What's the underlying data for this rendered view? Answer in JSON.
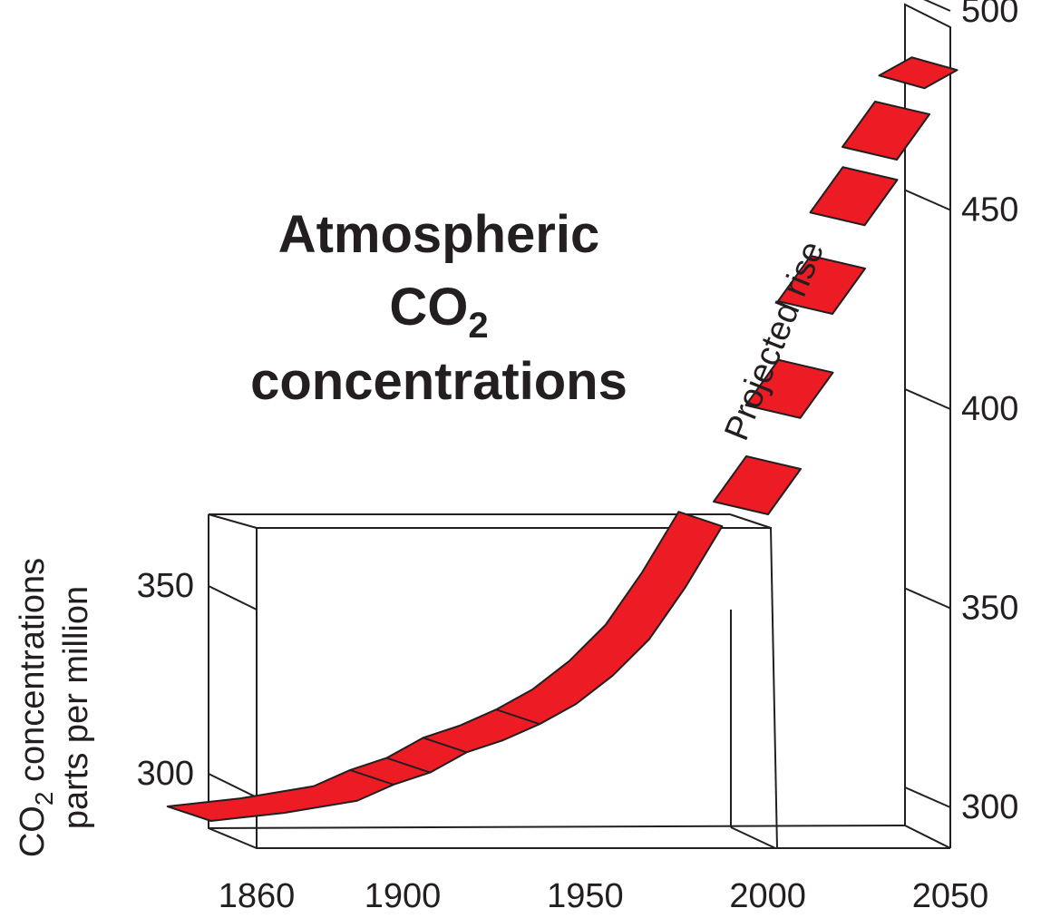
{
  "chart_data": {
    "type": "area",
    "title": {
      "line1": "Atmospheric",
      "line2_main": "CO",
      "line2_sub": "2",
      "line3": "concentrations"
    },
    "ylabel": {
      "line1_main": "CO",
      "line1_sub": "2",
      "line1_rest": " concentrations",
      "line2": "parts per million"
    },
    "annotation": "Projected rise",
    "x_ticks": [
      "1860",
      "1900",
      "1950",
      "2000",
      "2050"
    ],
    "left_axis_ticks": [
      "300",
      "350"
    ],
    "right_axis_ticks": [
      "300",
      "350",
      "400",
      "450",
      "500"
    ],
    "xlim": [
      1850,
      2050
    ],
    "ylim": [
      285,
      500
    ],
    "grid": false,
    "historical": {
      "x": [
        1850,
        1870,
        1890,
        1900,
        1910,
        1920,
        1930,
        1940,
        1950,
        1960,
        1970,
        1980,
        1990
      ],
      "y": [
        287,
        289,
        292,
        296,
        299,
        304,
        307,
        311,
        316,
        323,
        332,
        345,
        360
      ]
    },
    "projected": {
      "x": [
        2000,
        2010,
        2020,
        2030,
        2040,
        2050
      ],
      "y": [
        385,
        410,
        437,
        460,
        477,
        492
      ]
    },
    "colors": {
      "series": "#ed1c24",
      "lines": "#231f20"
    }
  }
}
